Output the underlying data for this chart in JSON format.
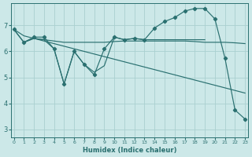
{
  "xlabel": "Humidex (Indice chaleur)",
  "bg_color": "#cce8e8",
  "grid_color": "#aad0d0",
  "line_color": "#2a7070",
  "x_ticks": [
    0,
    1,
    2,
    3,
    4,
    5,
    6,
    7,
    8,
    9,
    10,
    11,
    12,
    13,
    14,
    15,
    16,
    17,
    18,
    19,
    20,
    21,
    22,
    23
  ],
  "y_ticks": [
    3,
    4,
    5,
    6,
    7
  ],
  "ylim": [
    2.7,
    7.85
  ],
  "xlim": [
    -0.3,
    23.3
  ],
  "line_zigzag": {
    "x": [
      0,
      1,
      2,
      3,
      4,
      5,
      6,
      7,
      8,
      9,
      10,
      11,
      12,
      13,
      14,
      15,
      16,
      17,
      18,
      19,
      20,
      21,
      22,
      23
    ],
    "y": [
      6.85,
      6.35,
      6.55,
      6.55,
      6.1,
      4.75,
      6.0,
      5.5,
      5.1,
      6.1,
      6.55,
      6.45,
      6.5,
      6.45,
      6.9,
      7.15,
      7.3,
      7.55,
      7.65,
      7.65,
      7.25,
      5.75,
      3.75,
      3.4
    ]
  },
  "line_flat": {
    "x": [
      0,
      1,
      2,
      3,
      4,
      5,
      6,
      7,
      8,
      9,
      10,
      11,
      12,
      13,
      14,
      15,
      16,
      17,
      18,
      19,
      20,
      21,
      22,
      23
    ],
    "y": [
      6.85,
      6.35,
      6.5,
      6.45,
      6.4,
      6.35,
      6.35,
      6.35,
      6.35,
      6.35,
      6.38,
      6.4,
      6.4,
      6.4,
      6.4,
      6.4,
      6.4,
      6.4,
      6.38,
      6.35,
      6.35,
      6.35,
      6.33,
      6.3
    ]
  },
  "line_descend": {
    "x": [
      0,
      1,
      2,
      3,
      4,
      5,
      6,
      7,
      8,
      9,
      10,
      11,
      12,
      13,
      14,
      15,
      16,
      17,
      18,
      19,
      20,
      21,
      22,
      23
    ],
    "y": [
      6.85,
      6.6,
      6.5,
      6.4,
      6.3,
      6.2,
      6.1,
      6.0,
      5.9,
      5.8,
      5.7,
      5.6,
      5.5,
      5.4,
      5.3,
      5.2,
      5.1,
      5.0,
      4.9,
      4.8,
      4.7,
      4.6,
      4.5,
      4.4
    ]
  },
  "line_inner": {
    "x": [
      1,
      2,
      3,
      4,
      5,
      6,
      7,
      8,
      9,
      10,
      11,
      12,
      13,
      14,
      15,
      16,
      17,
      18,
      19
    ],
    "y": [
      6.35,
      6.5,
      6.45,
      6.1,
      4.75,
      6.0,
      5.5,
      5.2,
      5.45,
      6.55,
      6.45,
      6.5,
      6.45,
      6.45,
      6.45,
      6.45,
      6.45,
      6.45,
      6.45
    ]
  }
}
